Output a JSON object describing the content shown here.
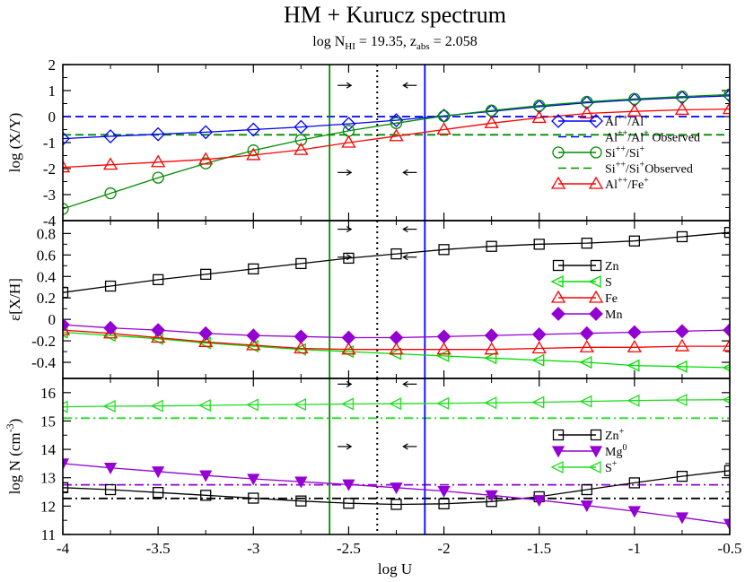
{
  "title": "HM + Kurucz spectrum",
  "subtitle": "log N_HI = 19.35, z_abs = 2.058",
  "subtitle_parts": {
    "a": "log N",
    "a_sub": "HI",
    "b": " = 19.35, z",
    "b_sub": "abs",
    "c": " = 2.058"
  },
  "colors": {
    "black": "#000000",
    "blue": "#0000ff",
    "green": "#008c00",
    "red": "#ff0000",
    "lime": "#00dd00",
    "purple": "#9400d3",
    "lightgreen": "#22dd22"
  },
  "chart_data": {
    "type": "line",
    "xlabel": "log U",
    "xlim": [
      -4,
      -0.5
    ],
    "xticks": [
      -4,
      -3.5,
      -3,
      -2.5,
      -2,
      -1.5,
      -1,
      -0.5
    ],
    "xtick_labels": [
      "-4",
      "-3.5",
      "-3",
      "-2.5",
      "-2",
      "-1.5",
      "-1",
      "-0.5"
    ],
    "x": [
      -4,
      -3.75,
      -3.5,
      -3.25,
      -3,
      -2.75,
      -2.5,
      -2.25,
      -2,
      -1.75,
      -1.5,
      -1.25,
      -1,
      -0.75,
      -0.5
    ],
    "vlines": [
      {
        "name": "lower-limit",
        "x": -2.6,
        "color": "#008c00",
        "style": "solid",
        "arrow": "right"
      },
      {
        "name": "best-fit",
        "x": -2.35,
        "color": "#000000",
        "style": "dotted"
      },
      {
        "name": "upper-limit",
        "x": -2.1,
        "color": "#0000ff",
        "style": "solid",
        "arrow": "left"
      }
    ],
    "panels": [
      {
        "id": "ratios",
        "ylabel": "log (X/Y)",
        "ylim": [
          -4,
          2
        ],
        "yticks": [
          -4,
          -3,
          -2,
          -1,
          0,
          1,
          2
        ],
        "ytick_labels": [
          "-4",
          "-3",
          "-2",
          "-1",
          "0",
          "1",
          "2"
        ],
        "series": [
          {
            "name": "Al++/Al+",
            "color": "#0000ff",
            "marker": "diamond",
            "values": [
              -0.85,
              -0.76,
              -0.68,
              -0.6,
              -0.5,
              -0.4,
              -0.28,
              -0.14,
              0.03,
              0.2,
              0.38,
              0.53,
              0.64,
              0.73,
              0.8
            ]
          },
          {
            "name": "Si++/Si+",
            "color": "#008c00",
            "marker": "circle",
            "values": [
              -3.55,
              -2.95,
              -2.35,
              -1.8,
              -1.3,
              -0.9,
              -0.55,
              -0.25,
              0.02,
              0.23,
              0.42,
              0.57,
              0.68,
              0.77,
              0.85
            ]
          },
          {
            "name": "Al++/Fe+",
            "color": "#ff0000",
            "marker": "triangle-up",
            "values": [
              -1.95,
              -1.85,
              -1.75,
              -1.65,
              -1.48,
              -1.28,
              -1.0,
              -0.75,
              -0.5,
              -0.25,
              -0.05,
              0.12,
              0.2,
              0.26,
              0.29
            ]
          }
        ],
        "hlines": [
          {
            "name": "Al++/Al+ Observed",
            "y": 0.0,
            "color": "#0000ff",
            "style": "dashed"
          },
          {
            "name": "Si++/Si+ Observed",
            "y": -0.7,
            "color": "#008c00",
            "style": "dashed"
          }
        ],
        "legend": [
          {
            "label": "Al",
            "sup1": "++",
            "mid": "/Al",
            "sup2": "+",
            "tail": "",
            "color": "#0000ff",
            "marker": "diamond",
            "style": "solid"
          },
          {
            "label": "Al",
            "sup1": "++",
            "mid": "/Al",
            "sup2": "+",
            "tail": " Observed",
            "color": "#0000ff",
            "marker": "none",
            "style": "dashed"
          },
          {
            "label": "Si",
            "sup1": "++",
            "mid": "/Si",
            "sup2": "+",
            "tail": "",
            "color": "#008c00",
            "marker": "circle",
            "style": "solid"
          },
          {
            "label": "Si",
            "sup1": "++",
            "mid": "/Si",
            "sup2": "+",
            "tail": "Observed",
            "color": "#008c00",
            "marker": "none",
            "style": "dashed"
          },
          {
            "label": "Al",
            "sup1": "++",
            "mid": "/Fe",
            "sup2": "+",
            "tail": "",
            "color": "#ff0000",
            "marker": "triangle-up",
            "style": "solid"
          }
        ],
        "arrows": [
          {
            "y": 1.2,
            "dir": "right"
          },
          {
            "y": -2.15,
            "dir": "right"
          },
          {
            "y": 1.2,
            "dir": "left"
          },
          {
            "y": -2.15,
            "dir": "left"
          }
        ]
      },
      {
        "id": "metallicity",
        "ylabel": "ε[X/H]",
        "ylim": [
          -0.55,
          0.92
        ],
        "yticks": [
          -0.4,
          -0.2,
          0,
          0.2,
          0.4,
          0.6,
          0.8
        ],
        "ytick_labels": [
          "-0.4",
          "-0.2",
          "0",
          "0.2",
          "0.4",
          "0.6",
          "0.8"
        ],
        "series": [
          {
            "name": "Zn",
            "color": "#000000",
            "marker": "square",
            "values": [
              0.25,
              0.31,
              0.37,
              0.42,
              0.47,
              0.52,
              0.57,
              0.61,
              0.65,
              0.68,
              0.7,
              0.71,
              0.73,
              0.77,
              0.81
            ]
          },
          {
            "name": "S",
            "color": "#00dd00",
            "marker": "triangle-left",
            "values": [
              -0.12,
              -0.15,
              -0.18,
              -0.22,
              -0.25,
              -0.28,
              -0.3,
              -0.32,
              -0.34,
              -0.36,
              -0.38,
              -0.4,
              -0.43,
              -0.44,
              -0.45
            ]
          },
          {
            "name": "Fe",
            "color": "#ff0000",
            "marker": "triangle-up",
            "values": [
              -0.1,
              -0.13,
              -0.17,
              -0.21,
              -0.24,
              -0.27,
              -0.28,
              -0.28,
              -0.28,
              -0.28,
              -0.27,
              -0.26,
              -0.26,
              -0.25,
              -0.25
            ]
          },
          {
            "name": "Mn",
            "color": "#9400d3",
            "marker": "diamond-filled",
            "values": [
              -0.05,
              -0.08,
              -0.1,
              -0.13,
              -0.15,
              -0.16,
              -0.17,
              -0.17,
              -0.16,
              -0.15,
              -0.14,
              -0.13,
              -0.12,
              -0.11,
              -0.1
            ]
          }
        ],
        "legend": [
          {
            "label": "Zn",
            "sup1": "",
            "mid": "",
            "sup2": "",
            "tail": "",
            "color": "#000000",
            "marker": "square",
            "style": "solid"
          },
          {
            "label": "S",
            "sup1": "",
            "mid": "",
            "sup2": "",
            "tail": "",
            "color": "#00dd00",
            "marker": "triangle-left",
            "style": "solid"
          },
          {
            "label": "Fe",
            "sup1": "",
            "mid": "",
            "sup2": "",
            "tail": "",
            "color": "#ff0000",
            "marker": "triangle-up",
            "style": "solid"
          },
          {
            "label": "Mn",
            "sup1": "",
            "mid": "",
            "sup2": "",
            "tail": "",
            "color": "#9400d3",
            "marker": "diamond-filled",
            "style": "solid"
          }
        ],
        "arrows": [
          {
            "y": 0.84,
            "dir": "right"
          },
          {
            "y": 0.58,
            "dir": "right"
          },
          {
            "y": 0.84,
            "dir": "left"
          },
          {
            "y": 0.58,
            "dir": "left"
          }
        ]
      },
      {
        "id": "columns",
        "ylabel": "log N (cm",
        "ylabel_sup": "-3",
        "ylabel_tail": ")",
        "ylim": [
          11,
          16.5
        ],
        "yticks": [
          11,
          12,
          13,
          14,
          15,
          16
        ],
        "ytick_labels": [
          "11",
          "12",
          "13",
          "14",
          "15",
          "16"
        ],
        "series": [
          {
            "name": "Zn+",
            "color": "#000000",
            "marker": "square",
            "values": [
              12.65,
              12.58,
              12.48,
              12.38,
              12.28,
              12.18,
              12.1,
              12.06,
              12.08,
              12.16,
              12.33,
              12.58,
              12.82,
              13.05,
              13.25
            ]
          },
          {
            "name": "Mg0",
            "color": "#9400d3",
            "marker": "triangle-down-filled",
            "values": [
              13.5,
              13.35,
              13.22,
              13.08,
              12.96,
              12.86,
              12.76,
              12.65,
              12.53,
              12.38,
              12.21,
              12.02,
              11.82,
              11.6,
              11.37
            ]
          },
          {
            "name": "S+",
            "color": "#22dd22",
            "marker": "triangle-left",
            "values": [
              15.5,
              15.52,
              15.53,
              15.55,
              15.57,
              15.58,
              15.6,
              15.61,
              15.62,
              15.64,
              15.66,
              15.69,
              15.72,
              15.74,
              15.75
            ]
          }
        ],
        "hlines": [
          {
            "name": "S+ observed",
            "y": 15.1,
            "color": "#22dd22",
            "style": "dashdot"
          },
          {
            "name": "Mg0 observed",
            "y": 12.75,
            "color": "#9400d3",
            "style": "dashdot"
          },
          {
            "name": "Zn+ observed",
            "y": 12.27,
            "color": "#000000",
            "style": "dashdot"
          }
        ],
        "legend": [
          {
            "label": "Zn",
            "sup1": "+",
            "mid": "",
            "sup2": "",
            "tail": "",
            "color": "#000000",
            "marker": "square",
            "style": "solid"
          },
          {
            "label": "Mg",
            "sup1": "0",
            "mid": "",
            "sup2": "",
            "tail": "",
            "color": "#9400d3",
            "marker": "triangle-down-filled",
            "style": "solid"
          },
          {
            "label": "S",
            "sup1": "+",
            "mid": "",
            "sup2": "",
            "tail": "",
            "color": "#22dd22",
            "marker": "triangle-left",
            "style": "solid"
          }
        ],
        "arrows": [
          {
            "y": 16.3,
            "dir": "right"
          },
          {
            "y": 14.1,
            "dir": "right"
          },
          {
            "y": 16.3,
            "dir": "left"
          },
          {
            "y": 14.1,
            "dir": "left"
          }
        ]
      }
    ]
  }
}
